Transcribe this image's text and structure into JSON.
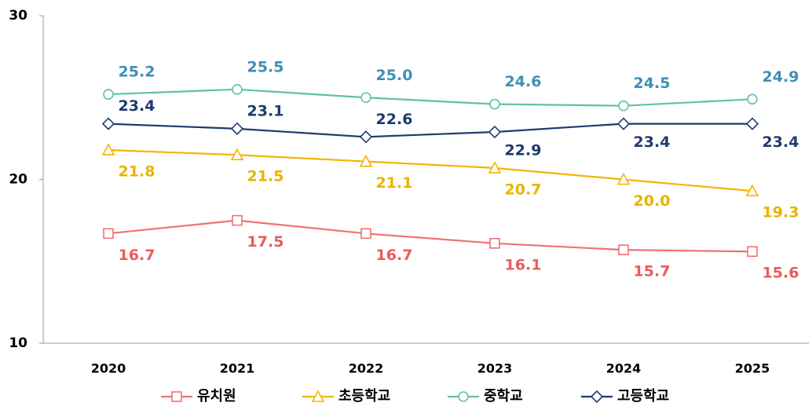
{
  "chart_data": {
    "type": "line",
    "categories": [
      "2020",
      "2021",
      "2022",
      "2023",
      "2024",
      "2025"
    ],
    "series": [
      {
        "name": "유치원",
        "color": "#f07272",
        "values": [
          16.7,
          17.5,
          16.7,
          16.1,
          15.7,
          15.6
        ],
        "value_labels": [
          "16.7",
          "17.5",
          "16.7",
          "16.1",
          "15.7",
          "15.6"
        ]
      },
      {
        "name": "초등학교",
        "color": "#f5b400",
        "values": [
          21.8,
          21.5,
          21.1,
          20.7,
          20.0,
          19.3
        ],
        "value_labels": [
          "21.8",
          "21.5",
          "21.1",
          "20.7",
          "20.0",
          "19.3"
        ]
      },
      {
        "name": "중학교",
        "color": "#5fc0ab",
        "values": [
          25.2,
          25.5,
          25.0,
          24.6,
          24.5,
          24.9
        ],
        "value_labels": [
          "25.2",
          "25.5",
          "25.0",
          "24.6",
          "24.5",
          "24.9"
        ]
      },
      {
        "name": "고등학교",
        "color": "#1f3a6e",
        "values": [
          23.4,
          23.1,
          22.6,
          22.9,
          23.4,
          23.4
        ],
        "value_labels": [
          "23.4",
          "23.1",
          "22.6",
          "22.9",
          "23.4",
          "23.4"
        ]
      }
    ],
    "ylim": [
      10,
      30
    ],
    "yticks": [
      10,
      20,
      30
    ],
    "grid": false,
    "legend": "bottom"
  }
}
